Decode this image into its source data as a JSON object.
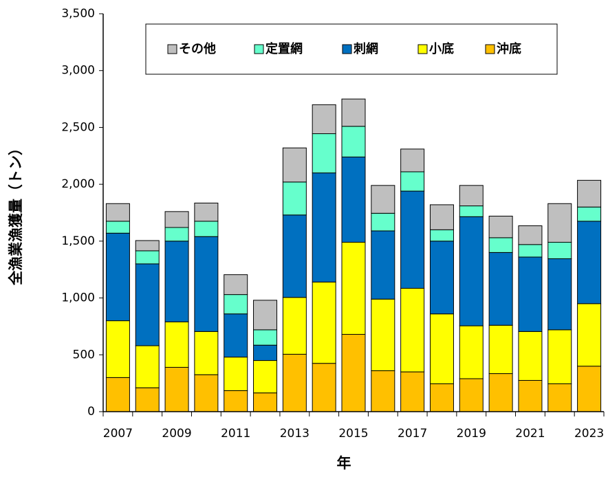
{
  "chart_data": {
    "type": "stacked_bar",
    "x_label": "年",
    "y_label": "全漁業漁獲量（トン）",
    "categories": [
      "2007",
      null,
      "2009",
      null,
      "2011",
      null,
      "2013",
      null,
      "2015",
      null,
      "2017",
      null,
      "2019",
      null,
      "2021",
      null,
      "2023"
    ],
    "series": [
      {
        "name": "その他",
        "color": "#bfbfbf",
        "values": [
          155,
          90,
          140,
          160,
          175,
          260,
          300,
          255,
          240,
          245,
          200,
          220,
          180,
          190,
          165,
          340,
          235
        ]
      },
      {
        "name": "定置網",
        "color": "#66ffcc",
        "values": [
          105,
          115,
          120,
          135,
          170,
          135,
          290,
          345,
          270,
          155,
          170,
          100,
          95,
          130,
          110,
          145,
          125
        ]
      },
      {
        "name": "刺網",
        "color": "#0070c0",
        "values": [
          770,
          720,
          710,
          835,
          380,
          135,
          725,
          960,
          750,
          600,
          855,
          640,
          960,
          640,
          655,
          625,
          725
        ]
      },
      {
        "name": "小底",
        "color": "#ffff00",
        "values": [
          500,
          370,
          400,
          380,
          295,
          285,
          500,
          715,
          810,
          630,
          735,
          615,
          465,
          425,
          430,
          475,
          550
        ]
      },
      {
        "name": "沖底",
        "color": "#ffc000",
        "values": [
          300,
          210,
          390,
          325,
          185,
          165,
          505,
          425,
          680,
          360,
          350,
          245,
          290,
          335,
          275,
          245,
          400
        ]
      }
    ],
    "ylim": [
      0,
      3500
    ],
    "yticks": [
      0,
      500,
      {
        "value": 1000,
        "label": "1,000"
      },
      {
        "value": 1500,
        "label": "1,500"
      },
      {
        "value": 2000,
        "label": "2,000"
      },
      {
        "value": 2500,
        "label": "2,500"
      },
      {
        "value": 3000,
        "label": "3,000"
      },
      {
        "value": 3500,
        "label": "3,500"
      }
    ],
    "grid": false
  }
}
